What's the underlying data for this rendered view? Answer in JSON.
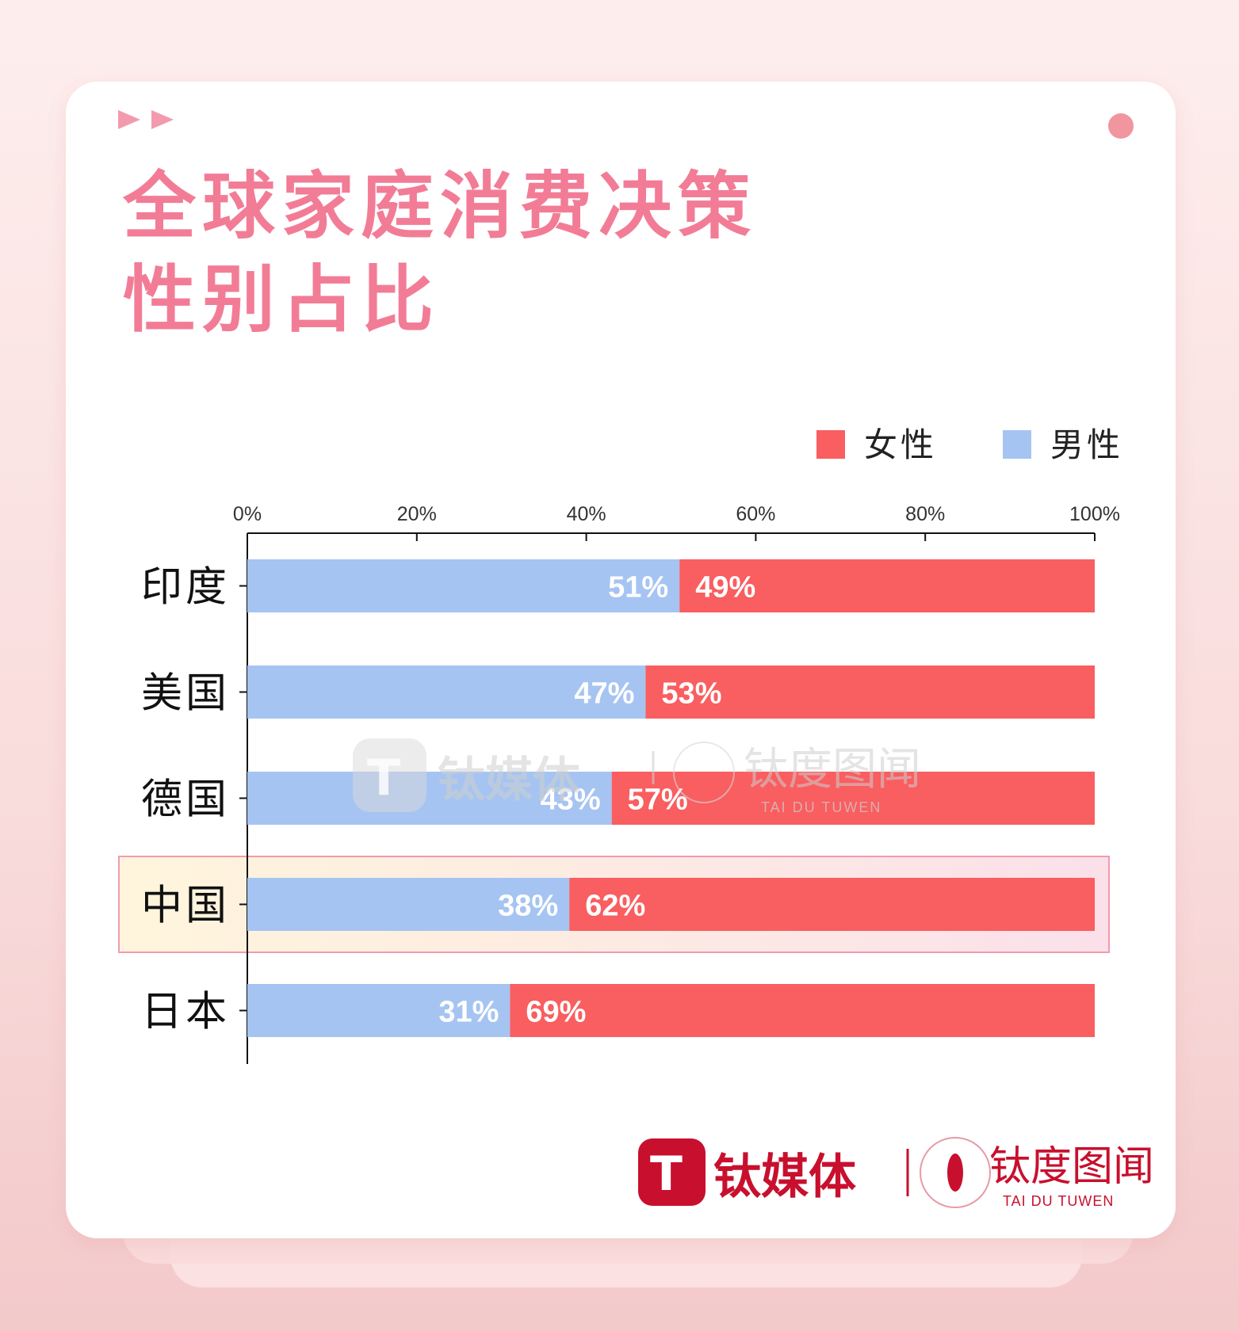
{
  "title": [
    "全球家庭消费决策",
    "性别占比"
  ],
  "colors": {
    "female": "#f95e60",
    "male": "#a6c4f2",
    "title": "#f27c96",
    "highlight_border": "#f29aae"
  },
  "chart_data": {
    "type": "bar",
    "orientation": "horizontal",
    "stacked": true,
    "title": "全球家庭消费决策性别占比",
    "categories": [
      "印度",
      "美国",
      "德国",
      "中国",
      "日本"
    ],
    "series": [
      {
        "name": "男性",
        "values": [
          51,
          47,
          43,
          38,
          31
        ]
      },
      {
        "name": "女性",
        "values": [
          49,
          53,
          57,
          62,
          69
        ]
      }
    ],
    "value_suffix": "%",
    "xlim": [
      0,
      100
    ],
    "x_ticks": [
      "0%",
      "20%",
      "40%",
      "60%",
      "80%",
      "100%"
    ],
    "highlight_category": "中国",
    "legend": {
      "position": "top-right",
      "entries": [
        "女性",
        "男性"
      ]
    },
    "grid": false
  },
  "watermark": {
    "brand": "钛媒体",
    "sub_brand": "钛度图闻",
    "sub_tagline": "TAI DU TUWEN"
  },
  "footer": {
    "brand": "钛媒体",
    "sub_brand": "钛度图闻",
    "sub_tagline": "TAI DU TUWEN"
  }
}
